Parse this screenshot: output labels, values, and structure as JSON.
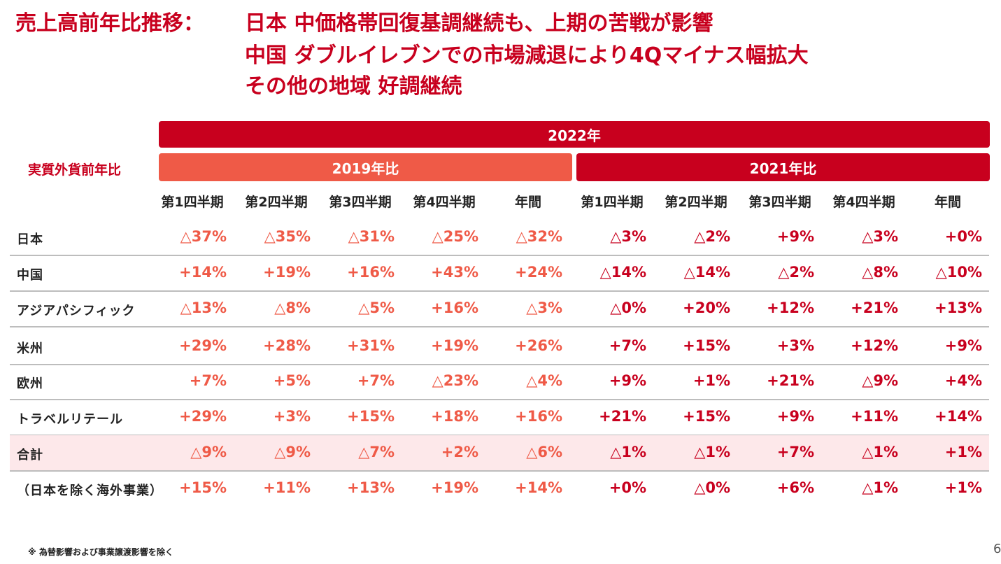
{
  "title": {
    "label": "売上高前年比推移：",
    "lines": [
      "日本 中価格帯回復基調継続も、上期の苦戦が影響",
      "中国 ダブルイレブンでの市場減退により4Qマイナス幅拡大",
      "その他の地域 好調継続"
    ]
  },
  "header": {
    "year": "2022年",
    "group_2019": "2019年比",
    "group_2021": "2021年比",
    "side_label": "実質外貨前年比",
    "columns": [
      "第1四半期",
      "第2四半期",
      "第3四半期",
      "第4四半期",
      "年間",
      "第1四半期",
      "第2四半期",
      "第3四半期",
      "第4四半期",
      "年間"
    ]
  },
  "rows": [
    {
      "label": "日本",
      "values": [
        "△37%",
        "△35%",
        "△31%",
        "△25%",
        "△32%",
        "△3%",
        "△2%",
        "+9%",
        "△3%",
        "+0%"
      ]
    },
    {
      "label": "中国",
      "values": [
        "+14%",
        "+19%",
        "+16%",
        "+43%",
        "+24%",
        "△14%",
        "△14%",
        "△2%",
        "△8%",
        "△10%"
      ]
    },
    {
      "label": "アジアパシフィック",
      "values": [
        "△13%",
        "△8%",
        "△5%",
        "+16%",
        "△3%",
        "△0%",
        "+20%",
        "+12%",
        "+21%",
        "+13%"
      ]
    },
    {
      "label": "米州",
      "values": [
        "+29%",
        "+28%",
        "+31%",
        "+19%",
        "+26%",
        "+7%",
        "+15%",
        "+3%",
        "+12%",
        "+9%"
      ]
    },
    {
      "label": "欧州",
      "values": [
        "+7%",
        "+5%",
        "+7%",
        "△23%",
        "△4%",
        "+9%",
        "+1%",
        "+21%",
        "△9%",
        "+4%"
      ]
    },
    {
      "label": "トラベルリテール",
      "values": [
        "+29%",
        "+3%",
        "+15%",
        "+18%",
        "+16%",
        "+21%",
        "+15%",
        "+9%",
        "+11%",
        "+14%"
      ]
    },
    {
      "label": "合計",
      "values": [
        "△9%",
        "△9%",
        "△7%",
        "+2%",
        "△6%",
        "△1%",
        "△1%",
        "+7%",
        "△1%",
        "+1%"
      ]
    },
    {
      "label": "（日本を除く海外事業）",
      "values": [
        "+15%",
        "+11%",
        "+13%",
        "+19%",
        "+14%",
        "+0%",
        "△0%",
        "+6%",
        "△1%",
        "+1%"
      ]
    }
  ],
  "footnote": "※ 為替影響および事業譲渡影響を除く",
  "page_number": "6",
  "colors": {
    "primary_red": "#c8001e",
    "accent_orange": "#ef5a47",
    "total_row_bg": "#fde8ea"
  }
}
